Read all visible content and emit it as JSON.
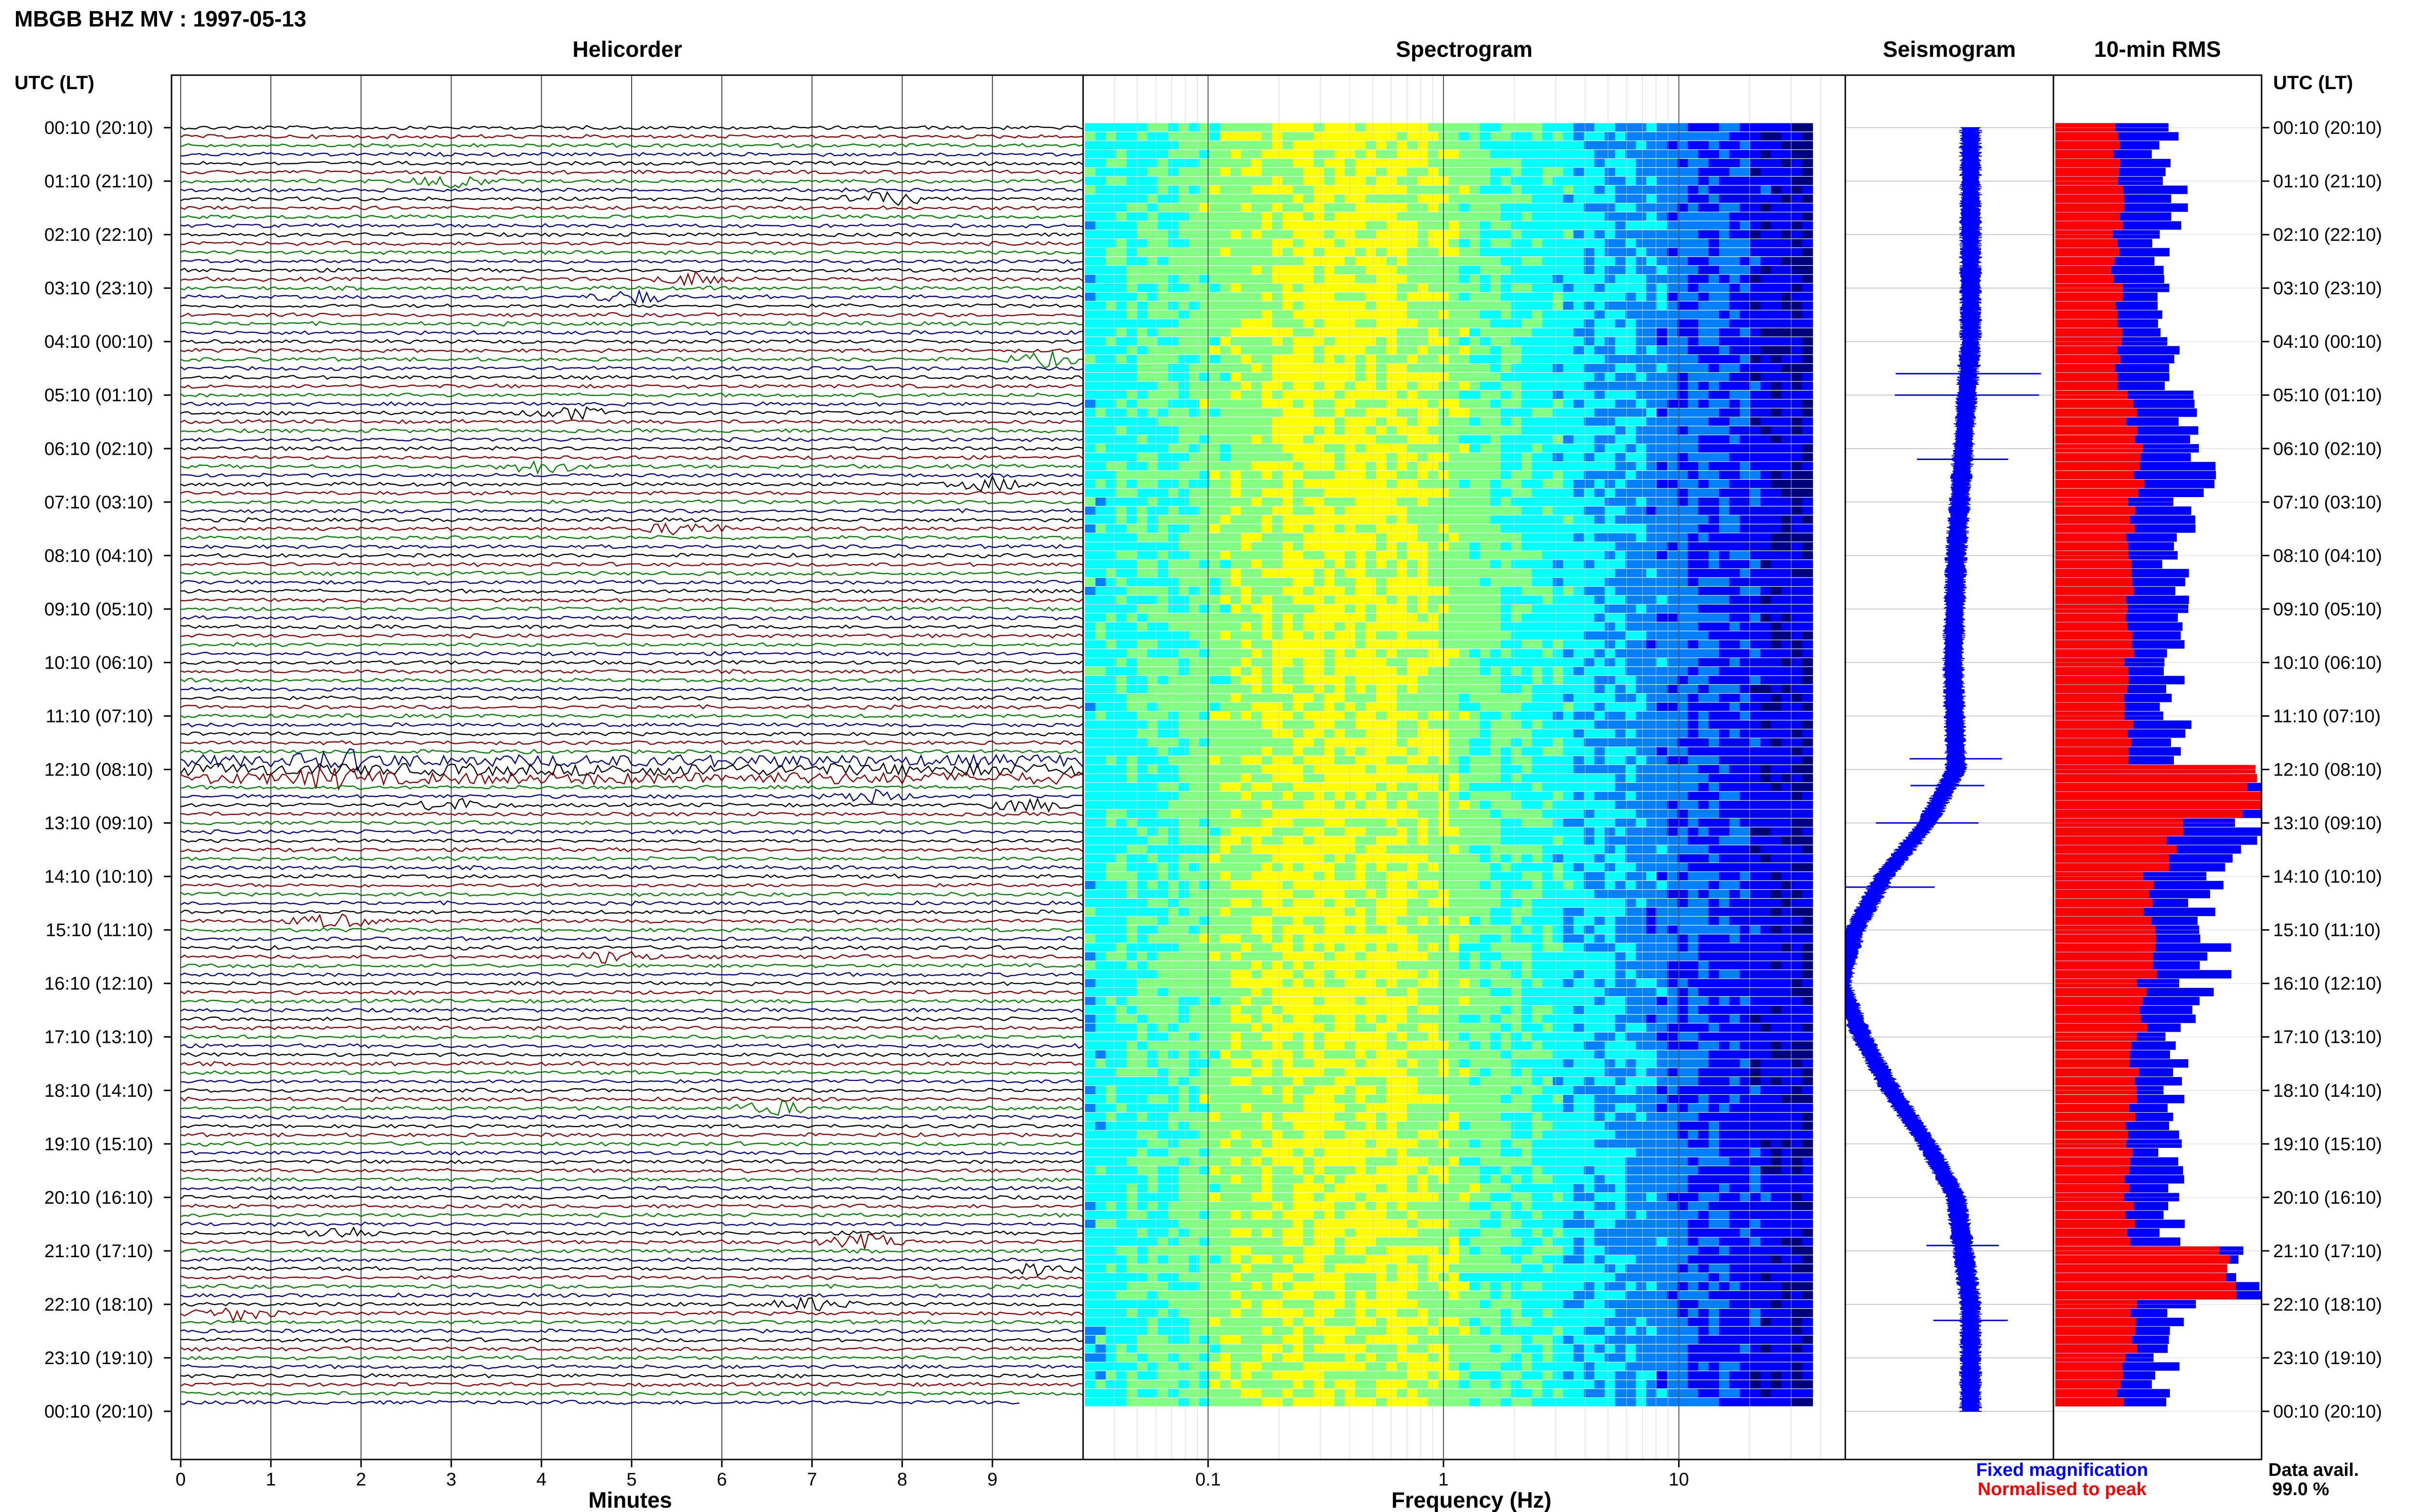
{
  "header": {
    "title": "MBGB BHZ MV : 1997-05-13",
    "utc_label_left": "UTC (LT)",
    "utc_label_right": "UTC (LT)"
  },
  "panels": {
    "helicorder": "Helicorder",
    "spectrogram": "Spectrogram",
    "seismogram": "Seismogram",
    "rms": "10-min RMS"
  },
  "colors": {
    "trace_cycle": [
      "#000000",
      "#8b0000",
      "#008000",
      "#00008b"
    ],
    "rms_fixed": "#0000ff",
    "rms_normalised": "#ff0000",
    "spectrogram_scale": [
      "#00007f",
      "#0000ff",
      "#0080ff",
      "#00ffff",
      "#80ff80",
      "#ffff00",
      "#ff8000",
      "#ff0000"
    ]
  },
  "chart_data": [
    {
      "type": "line",
      "name": "helicorder",
      "xlabel": "Minutes",
      "xlim": [
        0,
        10
      ],
      "x_ticks": [
        0,
        1,
        2,
        3,
        4,
        5,
        6,
        7,
        8,
        9
      ],
      "row_minutes": 10,
      "rows": 144,
      "row_data_available": 0.99,
      "y_tick_labels": [
        "00:10 (20:10)",
        "01:10 (21:10)",
        "02:10 (22:10)",
        "03:10 (23:10)",
        "04:10 (00:10)",
        "05:10 (01:10)",
        "06:10 (02:10)",
        "07:10 (03:10)",
        "08:10 (04:10)",
        "09:10 (05:10)",
        "10:10 (06:10)",
        "11:10 (07:10)",
        "12:10 (08:10)",
        "13:10 (09:10)",
        "14:10 (10:10)",
        "15:10 (11:10)",
        "16:10 (12:10)",
        "17:10 (13:10)",
        "18:10 (14:10)",
        "19:10 (15:10)",
        "20:10 (16:10)",
        "21:10 (17:10)",
        "22:10 (18:10)",
        "23:10 (19:10)",
        "00:10 (20:10)"
      ],
      "events": [
        {
          "hour": 1.0,
          "minute": 3.0
        },
        {
          "hour": 1.3,
          "minute": 7.8
        },
        {
          "hour": 2.8,
          "minute": 5.7
        },
        {
          "hour": 3.2,
          "minute": 5.0
        },
        {
          "hour": 4.3,
          "minute": 9.6
        },
        {
          "hour": 5.4,
          "minute": 4.3
        },
        {
          "hour": 6.3,
          "minute": 4.0
        },
        {
          "hour": 6.6,
          "minute": 9.0
        },
        {
          "hour": 7.5,
          "minute": 5.6
        },
        {
          "hour": 11.8,
          "minute": 1.8
        },
        {
          "hour": 12.2,
          "minute": 1.7
        },
        {
          "hour": 12.5,
          "minute": 7.6
        },
        {
          "hour": 12.7,
          "minute": 9.4
        },
        {
          "hour": 12.6,
          "minute": 3.0
        },
        {
          "hour": 14.9,
          "minute": 1.7
        },
        {
          "hour": 15.5,
          "minute": 4.8
        },
        {
          "hour": 18.3,
          "minute": 6.6
        },
        {
          "hour": 20.7,
          "minute": 1.8
        },
        {
          "hour": 20.9,
          "minute": 7.6
        },
        {
          "hour": 21.4,
          "minute": 9.5
        },
        {
          "hour": 22.0,
          "minute": 7.0
        },
        {
          "hour": 22.2,
          "minute": 0.6
        }
      ]
    },
    {
      "type": "heatmap",
      "name": "spectrogram",
      "xlabel": "Frequency (Hz)",
      "x_scale": "log",
      "xlim": [
        0.03,
        50
      ],
      "x_tick_labels": [
        "0.1",
        "1",
        "10"
      ],
      "x_ticks": [
        0.1,
        1,
        10
      ],
      "rows": 144,
      "peak_band_hz": [
        0.25,
        0.6
      ],
      "cutoff_hz": 37
    },
    {
      "type": "line",
      "name": "seismogram",
      "y_units": "hours UTC",
      "ylim": [
        0,
        24
      ],
      "baseline_offset_by_hour": [
        {
          "hour": 0,
          "offset": 0.0
        },
        {
          "hour": 2,
          "offset": 0.0
        },
        {
          "hour": 4,
          "offset": 0.0
        },
        {
          "hour": 6,
          "offset": -0.05
        },
        {
          "hour": 8,
          "offset": -0.1
        },
        {
          "hour": 10,
          "offset": -0.12
        },
        {
          "hour": 12,
          "offset": -0.1
        },
        {
          "hour": 13,
          "offset": -0.3
        },
        {
          "hour": 14,
          "offset": -0.6
        },
        {
          "hour": 15,
          "offset": -0.8
        },
        {
          "hour": 16,
          "offset": -0.9
        },
        {
          "hour": 17,
          "offset": -0.75
        },
        {
          "hour": 18,
          "offset": -0.55
        },
        {
          "hour": 19,
          "offset": -0.3
        },
        {
          "hour": 20,
          "offset": -0.1
        },
        {
          "hour": 22,
          "offset": 0.0
        },
        {
          "hour": 24,
          "offset": 0.0
        }
      ],
      "spikes_hours": [
        4.6,
        5.0,
        6.2,
        11.8,
        12.3,
        13.0,
        14.2,
        20.9,
        22.3
      ]
    },
    {
      "type": "bar",
      "name": "10-min RMS",
      "orientation": "horizontal",
      "series": [
        {
          "name": "Fixed magnification"
        },
        {
          "name": "Normalised to peak"
        }
      ],
      "hourly_fixed": [
        0.55,
        0.6,
        0.52,
        0.55,
        0.55,
        0.65,
        0.72,
        0.62,
        0.6,
        0.6,
        0.58,
        0.6,
        1.0,
        0.95,
        0.75,
        0.78,
        0.7,
        0.62,
        0.6,
        0.58,
        0.58,
        0.92,
        0.62,
        0.55
      ],
      "hourly_normalised": [
        0.3,
        0.32,
        0.3,
        0.32,
        0.32,
        0.38,
        0.42,
        0.38,
        0.37,
        0.37,
        0.36,
        0.37,
        1.0,
        0.6,
        0.47,
        0.5,
        0.44,
        0.4,
        0.38,
        0.37,
        0.37,
        0.85,
        0.4,
        0.33
      ]
    }
  ],
  "legend": {
    "fixed": "Fixed magnification",
    "normalised": "Normalised to peak",
    "data_avail_label": "Data avail.",
    "data_avail_value": "99.0 %"
  }
}
